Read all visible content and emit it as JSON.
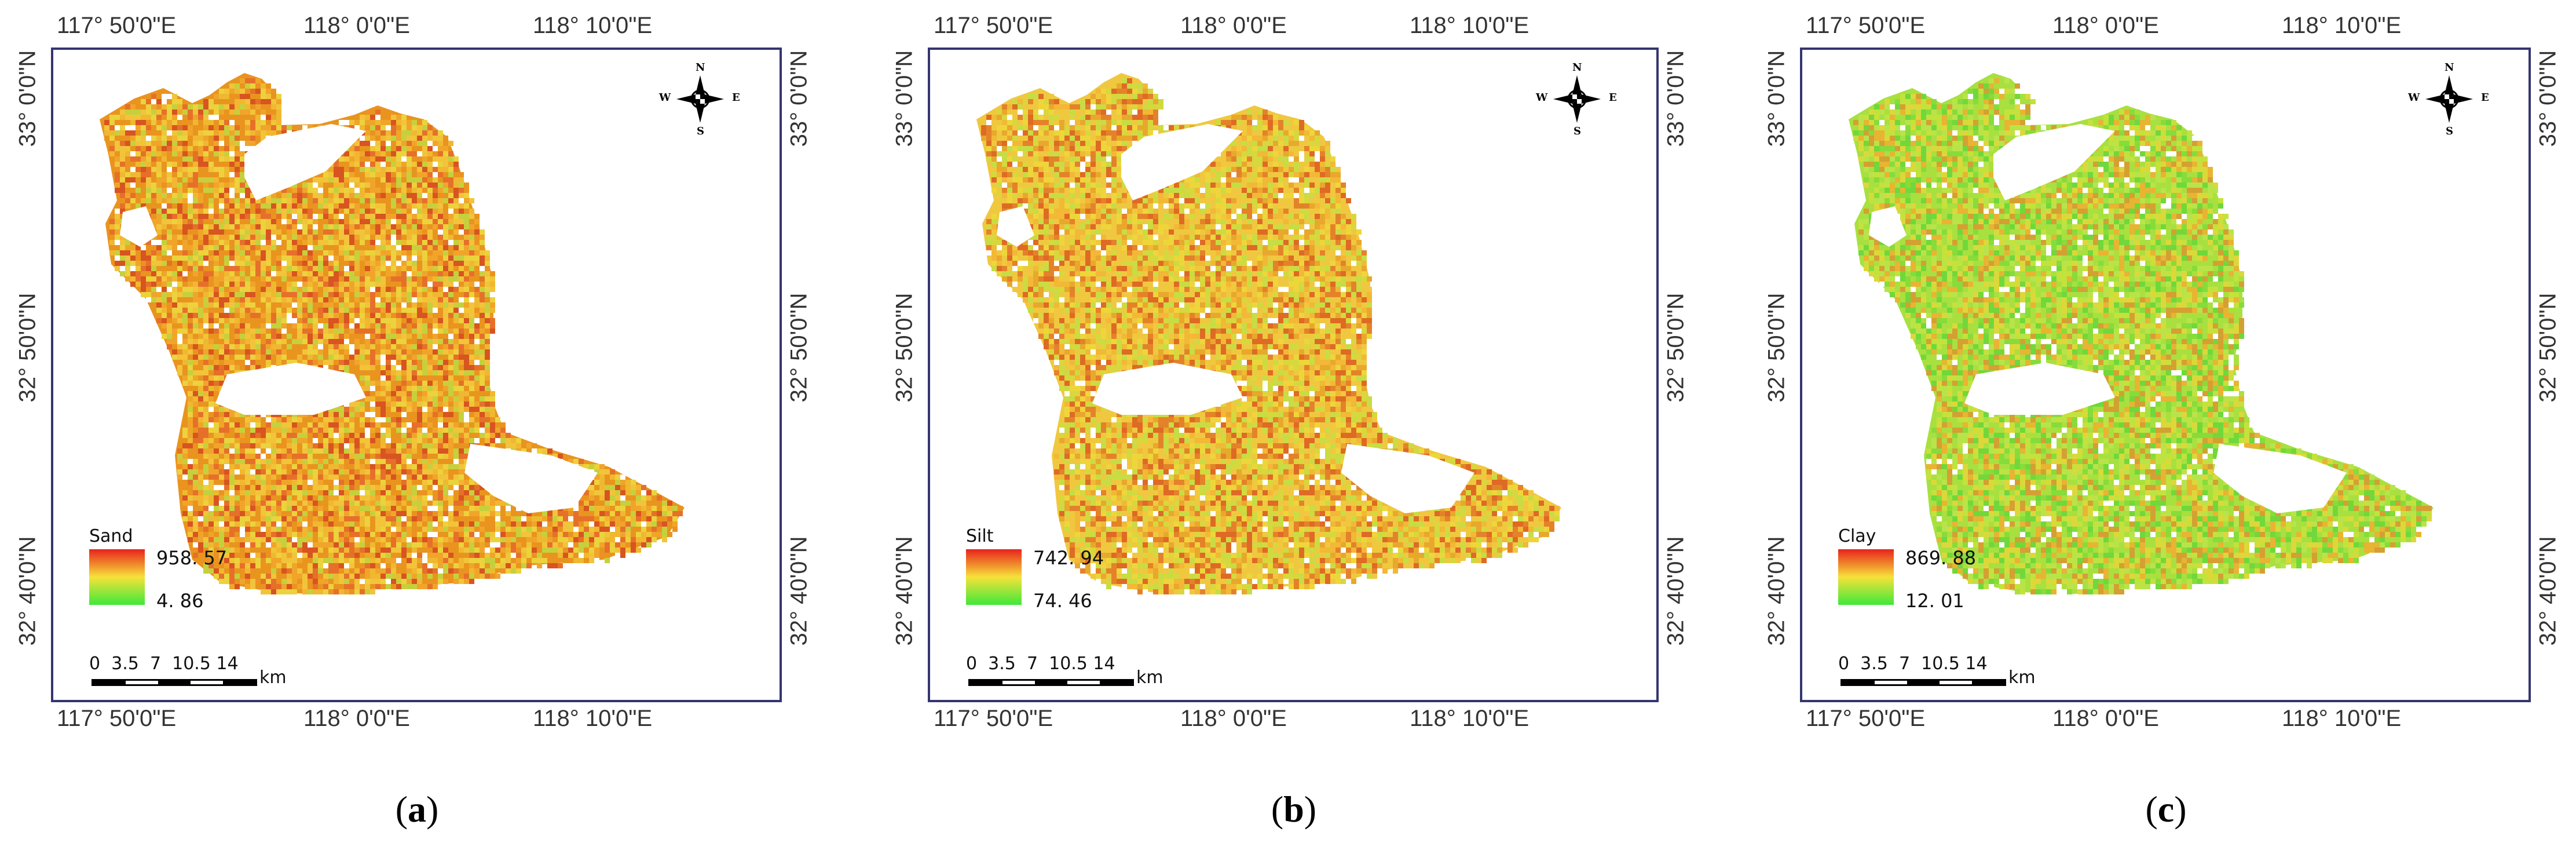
{
  "axes": {
    "top_labels": [
      "117° 50'0\"E",
      "118° 0'0\"E",
      "118° 10'0\"E"
    ],
    "bottom_labels": [
      "117° 50'0\"E",
      "118° 0'0\"E",
      "118° 10'0\"E"
    ],
    "left_labels": [
      "33° 0'0\"N",
      "32° 50'0\"N",
      "32° 40'0\"N"
    ],
    "right_labels": [
      "33° 0'0\"N",
      "32° 50'0\"N",
      "32° 40'0\"N"
    ]
  },
  "compass": {
    "n": "N",
    "s": "S",
    "e": "E",
    "w": "W"
  },
  "scalebar": {
    "ticks": "0  3.5  7  10.5 14",
    "unit": "km"
  },
  "panels": [
    {
      "caption_open": "(",
      "caption_letter": "a",
      "caption_close": ")",
      "legend": {
        "title": "Sand",
        "max": "958. 57",
        "min": "4. 86",
        "color_high": "#e8231c",
        "color_mid": "#f6e23a",
        "color_low": "#3ee83a"
      },
      "palette": [
        "#e9941f",
        "#f0a52a",
        "#e6702a",
        "#f2c43a",
        "#d85420",
        "#ecd23c",
        "#c6d03c",
        "#f0b830"
      ]
    },
    {
      "caption_open": "(",
      "caption_letter": "b",
      "caption_close": ")",
      "legend": {
        "title": "Silt",
        "max": "742. 94",
        "min": "74. 46",
        "color_high": "#e8231c",
        "color_mid": "#f6e23a",
        "color_low": "#3ee83a"
      },
      "palette": [
        "#f0c840",
        "#e8a82c",
        "#eed63a",
        "#e4822a",
        "#d6d83e",
        "#f2b836",
        "#de6a24",
        "#c8dc44"
      ]
    },
    {
      "caption_open": "(",
      "caption_letter": "c",
      "caption_close": ")",
      "legend": {
        "title": "Clay",
        "max": "869. 88",
        "min": "12. 01",
        "color_high": "#e8231c",
        "color_mid": "#f6e23a",
        "color_low": "#3ee83a"
      },
      "palette": [
        "#a8e040",
        "#c4e23c",
        "#86dc3a",
        "#dcd83a",
        "#e8b432",
        "#70d83a",
        "#b8e44a",
        "#d4a032"
      ]
    }
  ]
}
